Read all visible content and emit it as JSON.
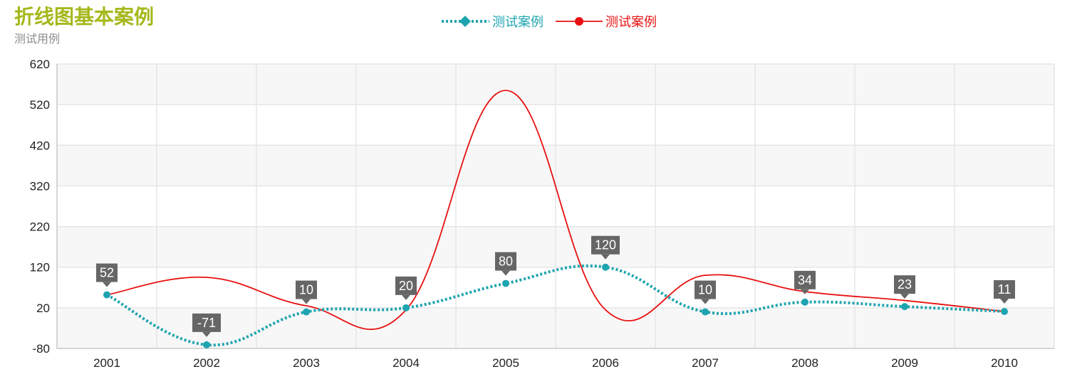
{
  "title": "折线图基本案例",
  "subtitle": "测试用例",
  "colors": {
    "title": "#a5b81b",
    "series1": "#1ea4b0",
    "series2": "#e81010",
    "label_bg": "#666666"
  },
  "chart_data": {
    "type": "line",
    "title": "折线图基本案例",
    "subtitle": "测试用例",
    "categories": [
      "2001",
      "2002",
      "2003",
      "2004",
      "2005",
      "2006",
      "2007",
      "2008",
      "2009",
      "2010"
    ],
    "series": [
      {
        "name": "测试案例",
        "style": "dotted",
        "color": "#1ea4b0",
        "values": [
          52,
          -71,
          10,
          20,
          80,
          120,
          10,
          34,
          23,
          11
        ],
        "show_labels": true
      },
      {
        "name": "测试案例",
        "style": "solid",
        "color": "#e81010",
        "values": [
          52,
          95,
          25,
          15,
          555,
          15,
          100,
          60,
          38,
          11
        ],
        "show_labels": false
      }
    ],
    "ylim": [
      -80,
      620
    ],
    "yticks": [
      620,
      520,
      420,
      320,
      220,
      120,
      20,
      -80
    ],
    "grid": true,
    "smooth": true,
    "legend_position": "top-center"
  }
}
